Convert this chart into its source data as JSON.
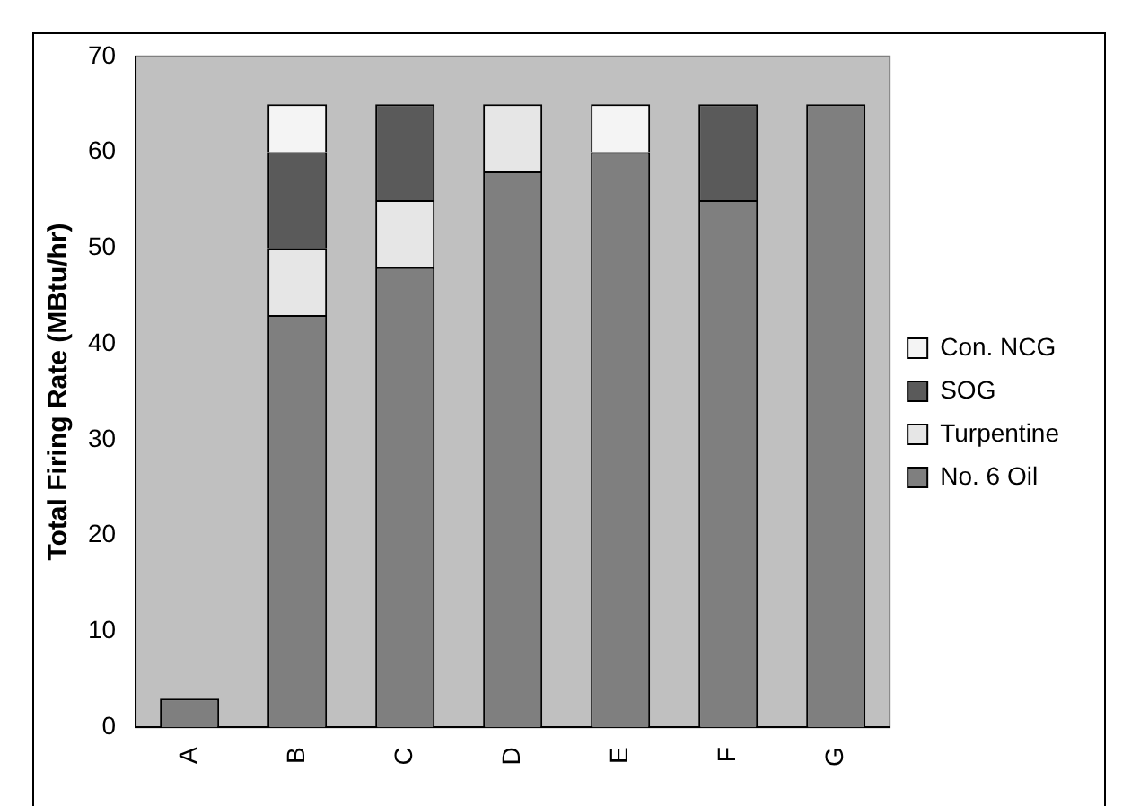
{
  "chart_data": {
    "type": "bar",
    "ylabel": "Total Firing Rate (MBtu/hr)",
    "categories": [
      "A",
      "B",
      "C",
      "D",
      "E",
      "F",
      "G"
    ],
    "stacked": true,
    "ylim": [
      0,
      70
    ],
    "yticks": [
      0,
      10,
      20,
      30,
      40,
      50,
      60,
      70
    ],
    "grid": false,
    "legend": "right",
    "series": [
      {
        "name": "No. 6 Oil",
        "color": "#7f7f7f",
        "values": [
          3,
          43,
          48,
          58,
          60,
          55,
          65
        ]
      },
      {
        "name": "Turpentine",
        "color": "#e6e6e6",
        "values": [
          0,
          7,
          7,
          7,
          0,
          0,
          0
        ]
      },
      {
        "name": "SOG",
        "color": "#5a5a5a",
        "values": [
          0,
          10,
          10,
          0,
          0,
          10,
          0
        ]
      },
      {
        "name": "Con. NCG",
        "color": "#f4f4f4",
        "values": [
          0,
          5,
          0,
          0,
          5,
          0,
          0
        ]
      }
    ]
  }
}
